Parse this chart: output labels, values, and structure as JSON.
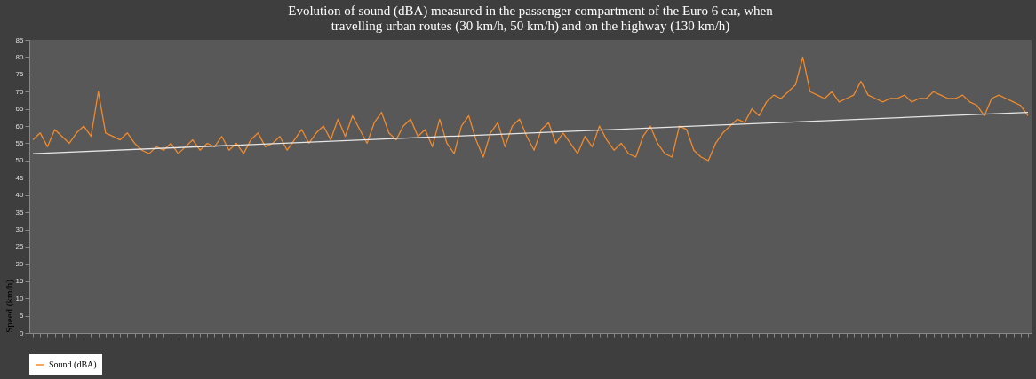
{
  "chart_data": {
    "type": "line",
    "title": [
      "Evolution of sound (dBA) measured in the passenger compartment of the Euro 6 car, when",
      "travelling urban routes (30 km/h, 50 km/h) and on the highway (130 km/h)"
    ],
    "annotations": [
      "Speed (km/h)"
    ],
    "categories": [
      null,
      null,
      null,
      null,
      null,
      null,
      null,
      null,
      null,
      null,
      null,
      null,
      null,
      null,
      null,
      null,
      null,
      null,
      null,
      null,
      null,
      null,
      null,
      null,
      null,
      null,
      null,
      null,
      null,
      null,
      null,
      null,
      null,
      null,
      null,
      null,
      null,
      null,
      null,
      null,
      null,
      null,
      null,
      null,
      null,
      null,
      null,
      null,
      null,
      null,
      null,
      null,
      null,
      null,
      null,
      null,
      null,
      null,
      null,
      null,
      null,
      null,
      null,
      null,
      null,
      null,
      null,
      null,
      null,
      null,
      null,
      null,
      null,
      null,
      null,
      null,
      null,
      null,
      null,
      null,
      null,
      null,
      null,
      null,
      null,
      null,
      null,
      null,
      null,
      null,
      null,
      null,
      null,
      null,
      null,
      null,
      null,
      null,
      null,
      null,
      null,
      null,
      null,
      null,
      null,
      null,
      null,
      null,
      null,
      null,
      null,
      null,
      null,
      null,
      null,
      null,
      null,
      null,
      null,
      null,
      null,
      null,
      null,
      null,
      null,
      null,
      null,
      null,
      null,
      null,
      null,
      null,
      null,
      null,
      null,
      null,
      null,
      null
    ],
    "series": [
      {
        "name": "Sound (dBA)",
        "color": "#f08a2c",
        "values": [
          56,
          58,
          54,
          59,
          57,
          55,
          58,
          60,
          57,
          70,
          58,
          57,
          56,
          58,
          55,
          53,
          52,
          54,
          53,
          55,
          52,
          54,
          56,
          53,
          55,
          54,
          57,
          53,
          55,
          52,
          56,
          58,
          54,
          55,
          57,
          53,
          56,
          59,
          55,
          58,
          60,
          56,
          62,
          57,
          63,
          59,
          55,
          61,
          64,
          58,
          56,
          60,
          62,
          57,
          59,
          54,
          62,
          55,
          52,
          60,
          63,
          56,
          51,
          58,
          61,
          54,
          60,
          62,
          57,
          53,
          59,
          61,
          55,
          58,
          55,
          52,
          57,
          54,
          60,
          56,
          53,
          55,
          52,
          51,
          57,
          60,
          55,
          52,
          51,
          60,
          59,
          53,
          51,
          50,
          55,
          58,
          60,
          62,
          61,
          65,
          63,
          67,
          69,
          68,
          70,
          72,
          80,
          70,
          69,
          68,
          70,
          67,
          68,
          69,
          73,
          69,
          68,
          67,
          68,
          68,
          69,
          67,
          68,
          68,
          70,
          69,
          68,
          68,
          69,
          67,
          66,
          63,
          68,
          69,
          68,
          67,
          66,
          63
        ]
      },
      {
        "type": "line",
        "color": "#e6e6e6",
        "values": [
          52,
          null,
          null,
          null,
          null,
          null,
          null,
          null,
          null,
          null,
          null,
          null,
          null,
          null,
          null,
          null,
          null,
          null,
          null,
          null,
          null,
          null,
          null,
          null,
          null,
          null,
          null,
          null,
          null,
          null,
          null,
          null,
          null,
          null,
          null,
          null,
          null,
          null,
          null,
          null,
          null,
          null,
          null,
          null,
          null,
          null,
          null,
          null,
          null,
          null,
          null,
          null,
          null,
          null,
          null,
          null,
          null,
          null,
          null,
          null,
          null,
          null,
          null,
          null,
          null,
          null,
          null,
          null,
          null,
          null,
          null,
          null,
          null,
          null,
          null,
          null,
          null,
          null,
          null,
          null,
          null,
          null,
          null,
          null,
          null,
          null,
          null,
          null,
          null,
          null,
          null,
          null,
          null,
          null,
          null,
          null,
          null,
          null,
          null,
          null,
          null,
          null,
          null,
          null,
          null,
          null,
          null,
          null,
          null,
          null,
          null,
          null,
          null,
          null,
          null,
          null,
          null,
          null,
          null,
          null,
          null,
          null,
          null,
          null,
          null,
          null,
          null,
          null,
          null,
          null,
          null,
          null,
          null,
          null,
          null,
          null,
          null,
          64
        ]
      }
    ],
    "ylim": [
      0,
      85
    ],
    "yticks": [
      0,
      5,
      10,
      15,
      20,
      25,
      30,
      35,
      40,
      45,
      50,
      55,
      60,
      65,
      70,
      75,
      80,
      85
    ],
    "tick_labels": "y",
    "grid": false,
    "legend": "bottom",
    "marker": "none",
    "line_style": "solid"
  }
}
